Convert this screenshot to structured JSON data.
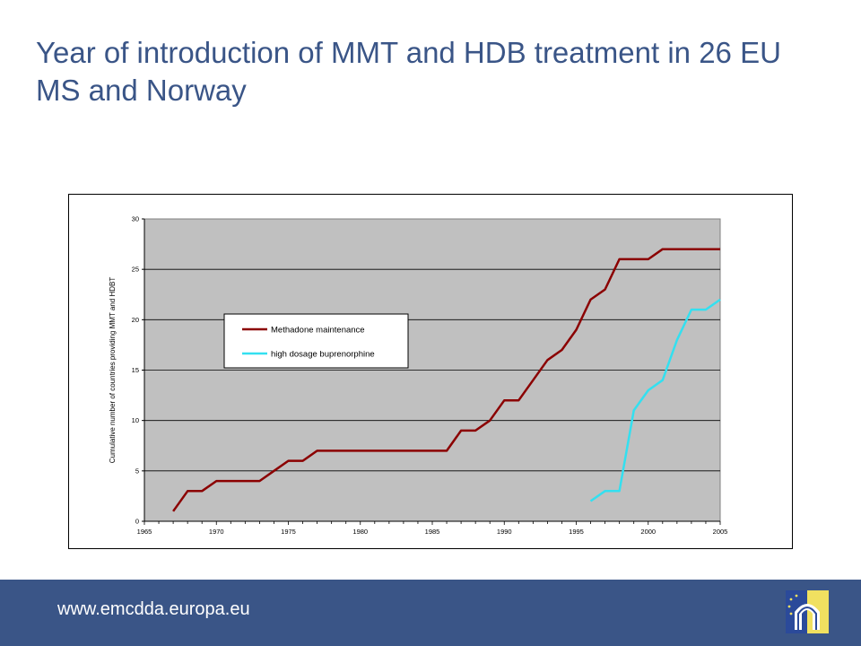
{
  "slide": {
    "title": "Year of introduction of MMT and HDB treatment in 26 EU MS and Norway",
    "footer_url": "www.emcdda.europa.eu"
  },
  "colors": {
    "title": "#3A5587",
    "footer": "#3A5587",
    "plot_background": "#C0C0C0",
    "methadone": "#8B0000",
    "buprenorphine": "#33E0F0"
  },
  "chart_data": {
    "type": "line",
    "title": "",
    "xlabel": "",
    "ylabel": "Cumulative number of countries providing MMT and HDBT",
    "xlim": [
      1965,
      2005
    ],
    "ylim": [
      0,
      30
    ],
    "xticks": [
      1965,
      1970,
      1975,
      1980,
      1985,
      1990,
      1995,
      2000,
      2005
    ],
    "yticks": [
      0,
      5,
      10,
      15,
      20,
      25,
      30
    ],
    "grid": "horizontal",
    "legend_position": "center-left",
    "series": [
      {
        "name": "Methadone maintenance",
        "color": "#8B0000",
        "x": [
          1967,
          1968,
          1969,
          1970,
          1971,
          1972,
          1973,
          1974,
          1975,
          1976,
          1977,
          1978,
          1979,
          1980,
          1981,
          1982,
          1983,
          1984,
          1985,
          1986,
          1987,
          1988,
          1989,
          1990,
          1991,
          1992,
          1993,
          1994,
          1995,
          1996,
          1997,
          1998,
          1999,
          2000,
          2001,
          2002,
          2003,
          2004,
          2005
        ],
        "y": [
          1,
          3,
          3,
          4,
          4,
          4,
          4,
          5,
          6,
          6,
          7,
          7,
          7,
          7,
          7,
          7,
          7,
          7,
          7,
          7,
          9,
          9,
          10,
          12,
          12,
          14,
          16,
          17,
          19,
          22,
          23,
          26,
          26,
          26,
          27,
          27,
          27,
          27,
          27
        ]
      },
      {
        "name": "high dosage buprenorphine",
        "color": "#33E0F0",
        "x": [
          1996,
          1997,
          1998,
          1999,
          2000,
          2001,
          2002,
          2003,
          2004,
          2005
        ],
        "y": [
          2,
          3,
          3,
          11,
          13,
          14,
          18,
          21,
          21,
          22
        ]
      }
    ]
  }
}
